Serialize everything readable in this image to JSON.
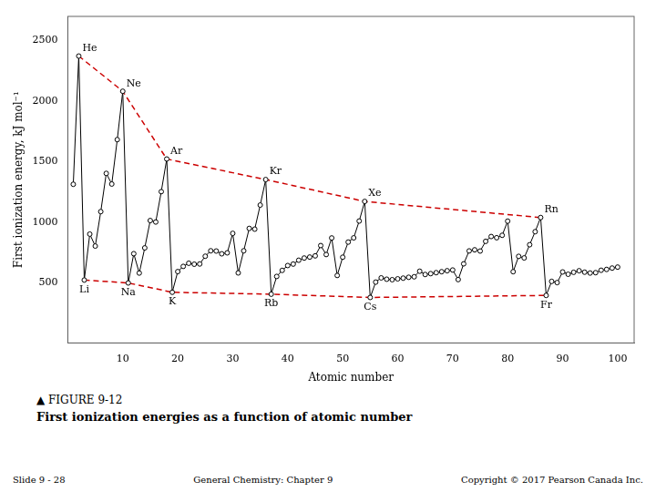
{
  "chart_data": {
    "type": "line",
    "title": "First ionization energies as a function of atomic number",
    "subtitle": "▲ FIGURE 9-12",
    "xlabel": "Atomic number",
    "ylabel": "First ionization energy, kJ mol⁻¹",
    "xlim": [
      0,
      103
    ],
    "ylim": [
      0,
      2700
    ],
    "xticks": [
      10,
      20,
      30,
      40,
      50,
      60,
      70,
      80,
      90,
      100
    ],
    "yticks": [
      500,
      1000,
      1500,
      2000,
      2500
    ],
    "grid": false,
    "series": [
      {
        "color": "#000000",
        "marker": "open_circle",
        "line_style": "solid",
        "x": [
          1,
          2,
          3,
          4,
          5,
          6,
          7,
          8,
          9,
          10,
          11,
          12,
          13,
          14,
          15,
          16,
          17,
          18,
          19,
          20,
          21,
          22,
          23,
          24,
          25,
          26,
          27,
          28,
          29,
          30,
          31,
          32,
          33,
          34,
          35,
          36,
          37,
          38,
          39,
          40,
          41,
          42,
          43,
          44,
          45,
          46,
          47,
          48,
          49,
          50,
          51,
          52,
          53,
          54,
          55,
          56,
          57,
          58,
          59,
          60,
          61,
          62,
          63,
          64,
          65,
          66,
          67,
          68,
          69,
          70,
          71,
          72,
          73,
          74,
          75,
          76,
          77,
          78,
          79,
          80,
          81,
          82,
          83,
          84,
          85,
          86,
          87,
          88,
          89,
          90,
          91,
          92,
          93,
          94,
          95,
          96,
          97,
          98,
          99,
          100
        ],
        "values": [
          1312,
          2372,
          520,
          900,
          801,
          1086,
          1402,
          1314,
          1681,
          2081,
          496,
          738,
          578,
          786,
          1012,
          1000,
          1251,
          1521,
          419,
          590,
          633,
          659,
          651,
          653,
          717,
          762,
          760,
          737,
          745,
          906,
          579,
          762,
          947,
          941,
          1140,
          1351,
          403,
          550,
          600,
          640,
          652,
          684,
          702,
          710,
          720,
          805,
          731,
          868,
          558,
          709,
          834,
          869,
          1008,
          1170,
          376,
          503,
          538,
          527,
          523,
          530,
          536,
          543,
          547,
          593,
          566,
          573,
          581,
          589,
          597,
          603,
          524,
          654,
          761,
          770,
          760,
          840,
          880,
          870,
          890,
          1007,
          589,
          716,
          703,
          812,
          920,
          1037,
          393,
          509,
          499,
          587,
          568,
          584,
          597,
          585,
          578,
          581,
          601,
          608,
          619,
          627
        ]
      },
      {
        "color": "#cc0000",
        "marker": "none",
        "line_style": "dashed",
        "x": [
          2,
          10,
          18,
          36,
          54,
          86
        ],
        "values": [
          2372,
          2081,
          1521,
          1351,
          1170,
          1037
        ]
      },
      {
        "color": "#cc0000",
        "marker": "none",
        "line_style": "dashed",
        "x": [
          3,
          11,
          19,
          37,
          55,
          87
        ],
        "values": [
          520,
          496,
          419,
          403,
          376,
          393
        ]
      }
    ],
    "annotations": [
      {
        "text": "He",
        "x": 2,
        "y": 2372,
        "position": "above"
      },
      {
        "text": "Ne",
        "x": 10,
        "y": 2081,
        "position": "above"
      },
      {
        "text": "Ar",
        "x": 18,
        "y": 1521,
        "position": "above"
      },
      {
        "text": "Kr",
        "x": 36,
        "y": 1351,
        "position": "above"
      },
      {
        "text": "Xe",
        "x": 54,
        "y": 1170,
        "position": "above"
      },
      {
        "text": "Rn",
        "x": 86,
        "y": 1037,
        "position": "above"
      },
      {
        "text": "Li",
        "x": 3,
        "y": 520,
        "position": "below"
      },
      {
        "text": "Na",
        "x": 11,
        "y": 496,
        "position": "below"
      },
      {
        "text": "K",
        "x": 19,
        "y": 419,
        "position": "below"
      },
      {
        "text": "Rb",
        "x": 37,
        "y": 403,
        "position": "below"
      },
      {
        "text": "Cs",
        "x": 55,
        "y": 376,
        "position": "below"
      },
      {
        "text": "Fr",
        "x": 87,
        "y": 393,
        "position": "below"
      },
      {
        "text": "Slide 9 - 28"
      },
      {
        "text": "General Chemistry: Chapter 9"
      },
      {
        "text": "Copyright © 2017 Pearson Canada Inc."
      }
    ]
  }
}
